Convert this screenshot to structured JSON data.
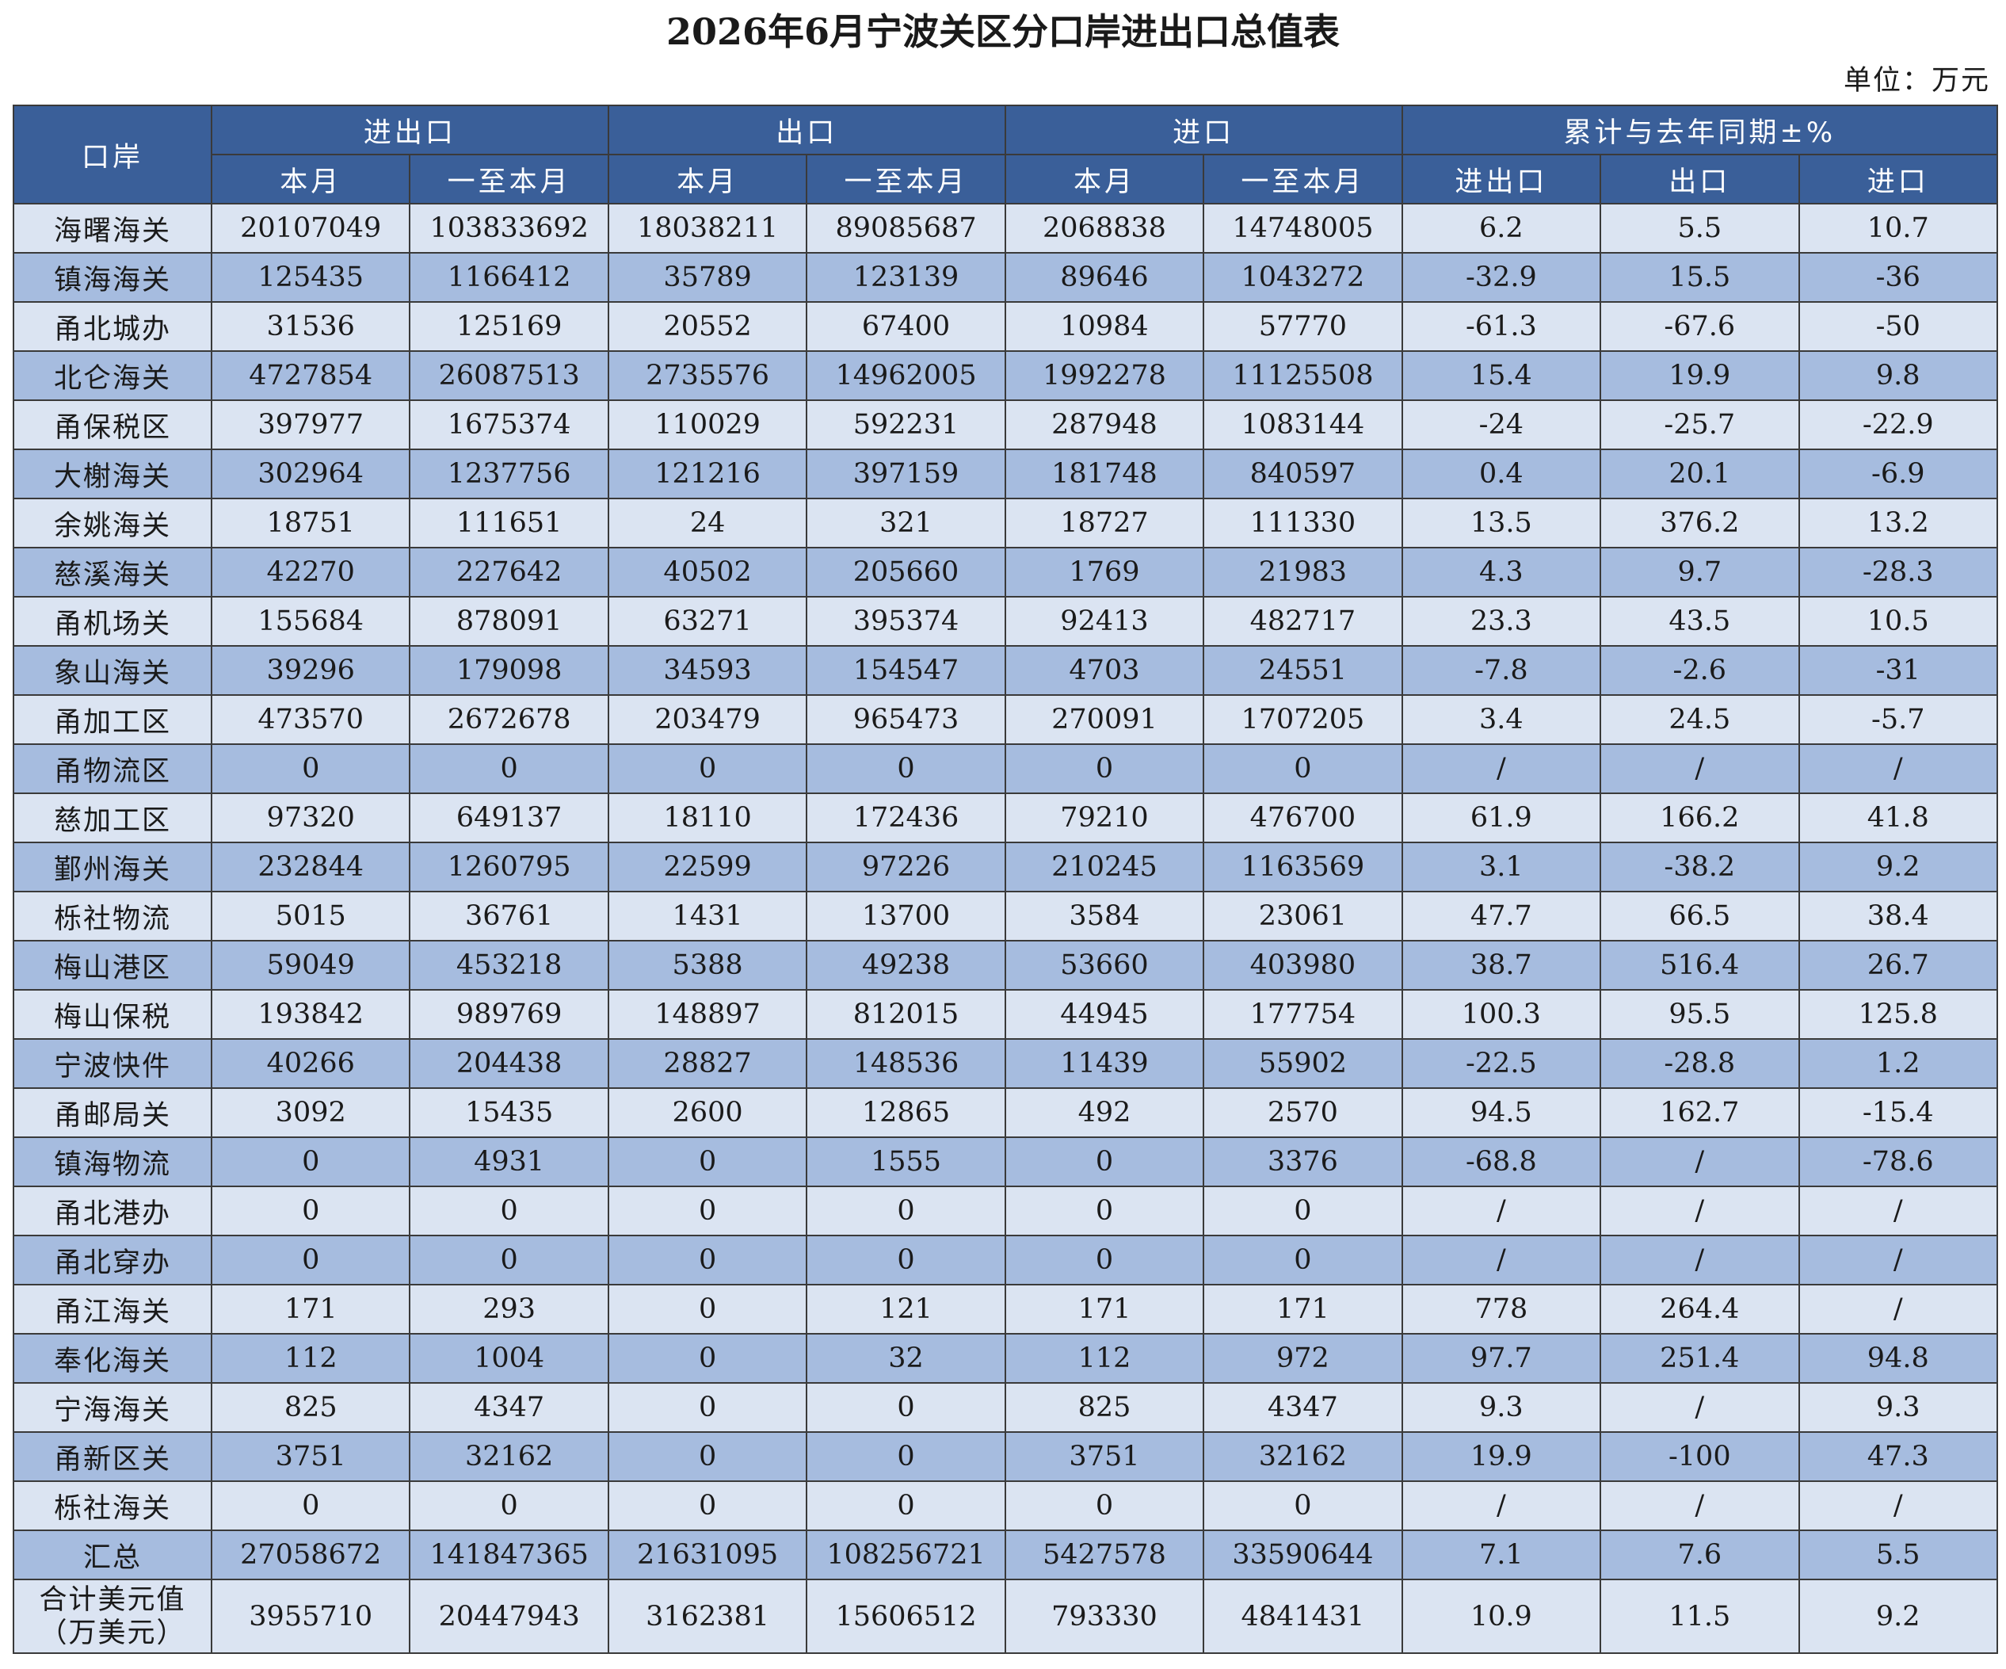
{
  "title": "2026年6月宁波关区分口岸进出口总值表",
  "unit": "单位：万元",
  "header": {
    "port": "口岸",
    "groups": [
      "进出口",
      "出口",
      "进口",
      "累计与去年同期±%"
    ],
    "sub": [
      "本月",
      "一至本月",
      "本月",
      "一至本月",
      "本月",
      "一至本月",
      "进出口",
      "出口",
      "进口"
    ]
  },
  "rows": [
    {
      "name": "海曙海关",
      "values": [
        "20107049",
        "103833692",
        "18038211",
        "89085687",
        "2068838",
        "14748005",
        "6.2",
        "5.5",
        "10.7"
      ]
    },
    {
      "name": "镇海海关",
      "values": [
        "125435",
        "1166412",
        "35789",
        "123139",
        "89646",
        "1043272",
        "-32.9",
        "15.5",
        "-36"
      ]
    },
    {
      "name": "甬北城办",
      "values": [
        "31536",
        "125169",
        "20552",
        "67400",
        "10984",
        "57770",
        "-61.3",
        "-67.6",
        "-50"
      ]
    },
    {
      "name": "北仑海关",
      "values": [
        "4727854",
        "26087513",
        "2735576",
        "14962005",
        "1992278",
        "11125508",
        "15.4",
        "19.9",
        "9.8"
      ]
    },
    {
      "name": "甬保税区",
      "values": [
        "397977",
        "1675374",
        "110029",
        "592231",
        "287948",
        "1083144",
        "-24",
        "-25.7",
        "-22.9"
      ]
    },
    {
      "name": "大榭海关",
      "values": [
        "302964",
        "1237756",
        "121216",
        "397159",
        "181748",
        "840597",
        "0.4",
        "20.1",
        "-6.9"
      ]
    },
    {
      "name": "余姚海关",
      "values": [
        "18751",
        "111651",
        "24",
        "321",
        "18727",
        "111330",
        "13.5",
        "376.2",
        "13.2"
      ]
    },
    {
      "name": "慈溪海关",
      "values": [
        "42270",
        "227642",
        "40502",
        "205660",
        "1769",
        "21983",
        "4.3",
        "9.7",
        "-28.3"
      ]
    },
    {
      "name": "甬机场关",
      "values": [
        "155684",
        "878091",
        "63271",
        "395374",
        "92413",
        "482717",
        "23.3",
        "43.5",
        "10.5"
      ]
    },
    {
      "name": "象山海关",
      "values": [
        "39296",
        "179098",
        "34593",
        "154547",
        "4703",
        "24551",
        "-7.8",
        "-2.6",
        "-31"
      ]
    },
    {
      "name": "甬加工区",
      "values": [
        "473570",
        "2672678",
        "203479",
        "965473",
        "270091",
        "1707205",
        "3.4",
        "24.5",
        "-5.7"
      ]
    },
    {
      "name": "甬物流区",
      "values": [
        "0",
        "0",
        "0",
        "0",
        "0",
        "0",
        "/",
        "/",
        "/"
      ]
    },
    {
      "name": "慈加工区",
      "values": [
        "97320",
        "649137",
        "18110",
        "172436",
        "79210",
        "476700",
        "61.9",
        "166.2",
        "41.8"
      ]
    },
    {
      "name": "鄞州海关",
      "values": [
        "232844",
        "1260795",
        "22599",
        "97226",
        "210245",
        "1163569",
        "3.1",
        "-38.2",
        "9.2"
      ]
    },
    {
      "name": "栎社物流",
      "values": [
        "5015",
        "36761",
        "1431",
        "13700",
        "3584",
        "23061",
        "47.7",
        "66.5",
        "38.4"
      ]
    },
    {
      "name": "梅山港区",
      "values": [
        "59049",
        "453218",
        "5388",
        "49238",
        "53660",
        "403980",
        "38.7",
        "516.4",
        "26.7"
      ]
    },
    {
      "name": "梅山保税",
      "values": [
        "193842",
        "989769",
        "148897",
        "812015",
        "44945",
        "177754",
        "100.3",
        "95.5",
        "125.8"
      ]
    },
    {
      "name": "宁波快件",
      "values": [
        "40266",
        "204438",
        "28827",
        "148536",
        "11439",
        "55902",
        "-22.5",
        "-28.8",
        "1.2"
      ]
    },
    {
      "name": "甬邮局关",
      "values": [
        "3092",
        "15435",
        "2600",
        "12865",
        "492",
        "2570",
        "94.5",
        "162.7",
        "-15.4"
      ]
    },
    {
      "name": "镇海物流",
      "values": [
        "0",
        "4931",
        "0",
        "1555",
        "0",
        "3376",
        "-68.8",
        "/",
        "-78.6"
      ]
    },
    {
      "name": "甬北港办",
      "values": [
        "0",
        "0",
        "0",
        "0",
        "0",
        "0",
        "/",
        "/",
        "/"
      ]
    },
    {
      "name": "甬北穿办",
      "values": [
        "0",
        "0",
        "0",
        "0",
        "0",
        "0",
        "/",
        "/",
        "/"
      ]
    },
    {
      "name": "甬江海关",
      "values": [
        "171",
        "293",
        "0",
        "121",
        "171",
        "171",
        "778",
        "264.4",
        "/"
      ]
    },
    {
      "name": "奉化海关",
      "values": [
        "112",
        "1004",
        "0",
        "32",
        "112",
        "972",
        "97.7",
        "251.4",
        "94.8"
      ]
    },
    {
      "name": "宁海海关",
      "values": [
        "825",
        "4347",
        "0",
        "0",
        "825",
        "4347",
        "9.3",
        "/",
        "9.3"
      ]
    },
    {
      "name": "甬新区关",
      "values": [
        "3751",
        "32162",
        "0",
        "0",
        "3751",
        "32162",
        "19.9",
        "-100",
        "47.3"
      ]
    },
    {
      "name": "栎社海关",
      "values": [
        "0",
        "0",
        "0",
        "0",
        "0",
        "0",
        "/",
        "/",
        "/"
      ]
    },
    {
      "name": "汇总",
      "values": [
        "27058672",
        "141847365",
        "21631095",
        "108256721",
        "5427578",
        "33590644",
        "7.1",
        "7.6",
        "5.5"
      ]
    }
  ],
  "usd": {
    "name_line1": "合计美元值",
    "name_line2": "（万美元）",
    "values": [
      "3955710",
      "20447943",
      "3162381",
      "15606512",
      "793330",
      "4841431",
      "10.9",
      "11.5",
      "9.2"
    ]
  }
}
